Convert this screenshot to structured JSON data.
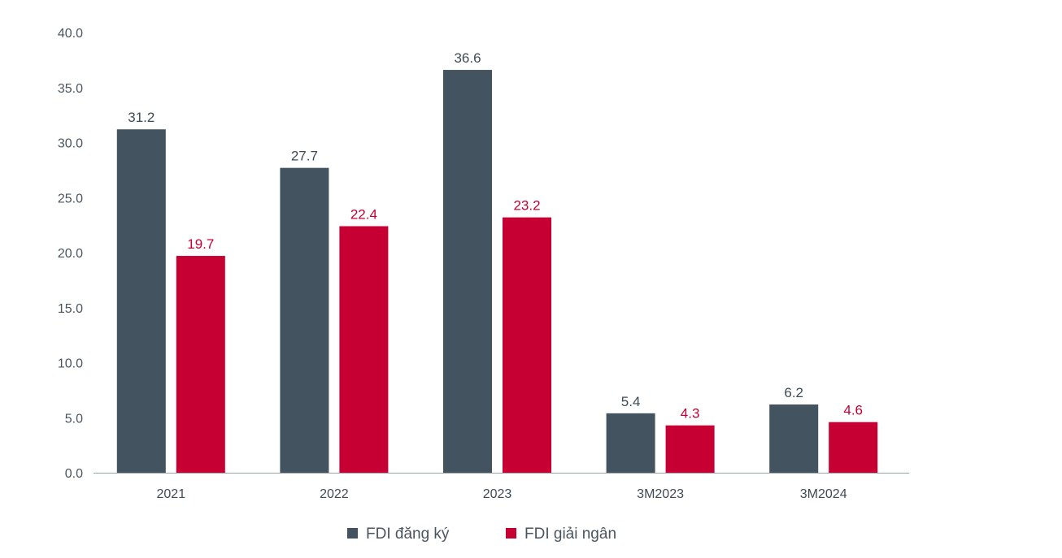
{
  "chart_data": {
    "type": "bar",
    "categories": [
      "2021",
      "2022",
      "2023",
      "3M2023",
      "3M2024"
    ],
    "series": [
      {
        "name": "FDI đăng ký",
        "color": "#43535f",
        "label_color": "#3d4a54",
        "values": [
          31.2,
          27.7,
          36.6,
          5.4,
          6.2
        ]
      },
      {
        "name": "FDI giải ngân",
        "color": "#c60032",
        "label_color": "#c60032",
        "values": [
          19.7,
          22.4,
          23.2,
          4.3,
          4.6
        ]
      }
    ],
    "ylim": [
      0,
      40
    ],
    "yticks": [
      "0.0",
      "5.0",
      "10.0",
      "15.0",
      "20.0",
      "25.0",
      "30.0",
      "35.0",
      "40.0"
    ],
    "title": "",
    "xlabel": "",
    "ylabel": "",
    "grid": false,
    "legend": "bottom-center"
  }
}
